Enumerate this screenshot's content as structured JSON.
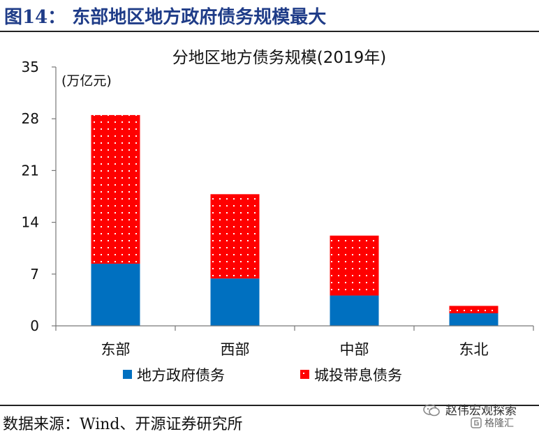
{
  "figure": {
    "title": "图14：  东部地区地方政府债务规模最大",
    "source": "数据来源：Wind、开源证券研究所"
  },
  "watermark": {
    "name": "赵伟宏观探索",
    "sub": "格隆汇"
  },
  "chart_data": {
    "type": "bar",
    "stacked": true,
    "title": "分地区地方债务规模(2019年)",
    "unit_label": "(万亿元)",
    "categories": [
      "东部",
      "西部",
      "中部",
      "东北"
    ],
    "series": [
      {
        "name": "地方政府债务",
        "values": [
          8.4,
          6.4,
          4.1,
          1.7
        ],
        "color": "#0070c0",
        "pattern": "solid"
      },
      {
        "name": "城投带息债务",
        "values": [
          20.1,
          11.4,
          8.1,
          1.0
        ],
        "color": "#ff0000",
        "pattern": "dotted"
      }
    ],
    "ylim": [
      0,
      35
    ],
    "yticks": [
      0,
      7,
      14,
      21,
      28,
      35
    ],
    "legend_position": "bottom",
    "grid": false
  }
}
